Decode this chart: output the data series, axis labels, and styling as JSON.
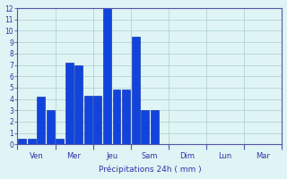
{
  "bar_values": [
    0.5,
    0.5,
    4.2,
    3.0,
    0.5,
    7.2,
    7.0,
    4.3,
    4.3,
    12.0,
    4.8,
    4.8,
    9.5,
    3.0,
    3.0,
    0,
    0,
    0,
    0,
    0,
    0,
    0,
    0,
    0,
    0,
    0,
    0,
    0
  ],
  "bar_color": "#1144dd",
  "bar_edge_color": "#0022aa",
  "background_color": "#dff4f4",
  "grid_color": "#aacece",
  "axis_color": "#5555aa",
  "tick_label_color": "#3333aa",
  "xlabel": "Précipitations 24h ( mm )",
  "ylim": [
    0,
    12
  ],
  "yticks": [
    0,
    1,
    2,
    3,
    4,
    5,
    6,
    7,
    8,
    9,
    10,
    11,
    12
  ],
  "day_labels": [
    "Ven",
    "Mer",
    "Jeu",
    "Sam",
    "Dim",
    "Lun",
    "Mar"
  ],
  "n_bars_per_day": 4,
  "n_days": 7,
  "xlim": [
    0,
    28
  ]
}
